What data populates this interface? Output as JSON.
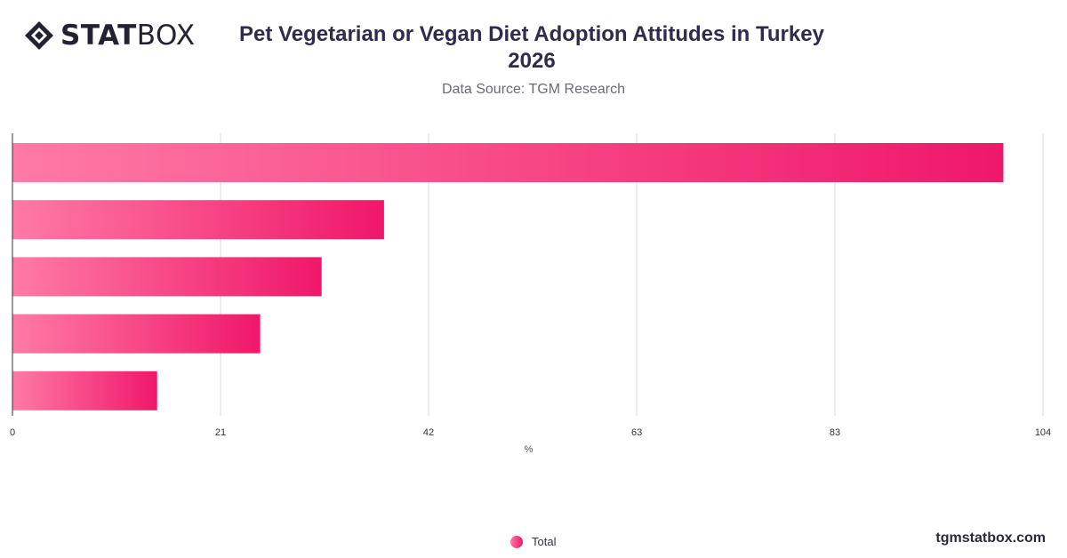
{
  "brand": {
    "logo_bold": "STAT",
    "logo_light": "BOX",
    "logo_icon": "statbox-diamond-icon",
    "website": "tgmstatbox.com"
  },
  "chart_data": {
    "type": "bar",
    "orientation": "horizontal",
    "title": "Pet Vegetarian or Vegan Diet Adoption Attitudes in Turkey 2026",
    "subtitle": "Data Source: TGM Research",
    "xlabel": "%",
    "ylabel": "",
    "xlim": [
      0,
      104
    ],
    "ticks": [
      "0",
      "21",
      "42",
      "63",
      "83",
      "104"
    ],
    "tick_values": [
      0,
      21,
      42,
      63,
      83,
      104
    ],
    "categories": [
      "",
      "",
      "",
      "",
      ""
    ],
    "series": [
      {
        "name": "Total",
        "values": [
          100,
          37.5,
          31.2,
          25,
          14.6
        ]
      }
    ],
    "grid": true,
    "legend": "bottom-center",
    "colors": {
      "bar_start": "#ff7aa6",
      "bar_end": "#f0176a",
      "grid": "#d9d9d9",
      "axis": "#333333"
    }
  }
}
